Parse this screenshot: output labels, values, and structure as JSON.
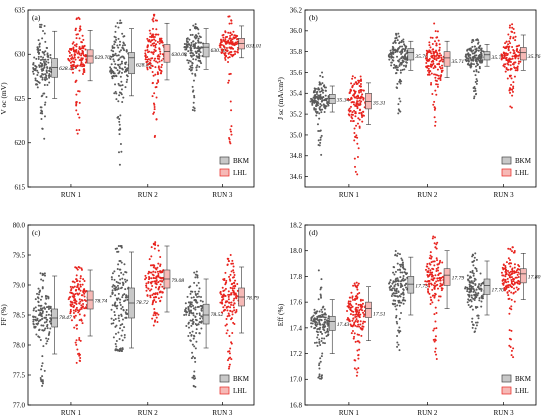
{
  "colors": {
    "BKM_points": "#5a5a5a",
    "BKM_box": "#c8c8c8",
    "LHL_points": "#e8231e",
    "LHL_box": "#f6b9b6",
    "axis": "#000000"
  },
  "legend": {
    "series": [
      "BKM",
      "LHL"
    ]
  },
  "chart_data": [
    {
      "panel_label": "(a)",
      "type": "box",
      "ylabel": "V oc (mV)",
      "categories": [
        "RUN 1",
        "RUN 2",
        "RUN 3"
      ],
      "ylim": [
        615,
        635
      ],
      "yticks": [
        615,
        620,
        625,
        630,
        635
      ],
      "yticklabels": [
        "615",
        "620",
        "625",
        "630",
        "635"
      ],
      "series": [
        {
          "name": "BKM",
          "means": [
            628.46,
            628.85,
            630.5
          ],
          "mean_labels": [
            "628.46",
            "628.85",
            "630.50"
          ],
          "q1": [
            627.4,
            627.8,
            629.7
          ],
          "median": [
            628.5,
            629.6,
            630.8
          ],
          "q3": [
            629.5,
            630.2,
            631.2
          ],
          "whisker_low": [
            625.0,
            625.3,
            628.3
          ],
          "whisker_high": [
            632.6,
            632.9,
            632.9
          ],
          "cloud_min": [
            619.5,
            617.3,
            623.5
          ],
          "cloud_max": [
            633.7,
            634.0,
            633.4
          ]
        },
        {
          "name": "LHL",
          "means": [
            629.7,
            630.03,
            631.01
          ],
          "mean_labels": [
            "629.70",
            "630.03",
            "631.01"
          ],
          "q1": [
            629.0,
            629.1,
            630.6
          ],
          "median": [
            629.8,
            630.3,
            631.2
          ],
          "q3": [
            630.5,
            631.1,
            631.8
          ],
          "whisker_low": [
            627.0,
            627.1,
            629.6
          ],
          "whisker_high": [
            632.7,
            633.5,
            633.2
          ],
          "cloud_min": [
            621.0,
            620.0,
            619.2
          ],
          "cloud_max": [
            634.3,
            634.7,
            634.3
          ]
        }
      ]
    },
    {
      "panel_label": "(b)",
      "type": "box",
      "ylabel": "J sc (mA/cm²)",
      "categories": [
        "RUN 1",
        "RUN 2",
        "RUN 3"
      ],
      "ylim": [
        34.5,
        36.2
      ],
      "yticks": [
        34.6,
        34.8,
        35.0,
        35.2,
        35.4,
        35.6,
        35.8,
        36.0,
        36.2
      ],
      "yticklabels": [
        "34.6",
        "34.8",
        "35.0",
        "35.2",
        "35.4",
        "35.6",
        "35.8",
        "36.0",
        "36.2"
      ],
      "series": [
        {
          "name": "BKM",
          "means": [
            35.34,
            35.76,
            35.75
          ],
          "mean_labels": [
            "35.34",
            "35.76",
            "35.75"
          ],
          "q1": [
            35.3,
            35.72,
            35.72
          ],
          "median": [
            35.35,
            35.79,
            35.77
          ],
          "q3": [
            35.39,
            35.83,
            35.8
          ],
          "whisker_low": [
            35.22,
            35.62,
            35.66
          ],
          "whisker_high": [
            35.47,
            35.9,
            35.87
          ],
          "cloud_min": [
            34.78,
            35.2,
            35.35
          ],
          "cloud_max": [
            35.62,
            35.98,
            35.92
          ]
        },
        {
          "name": "LHL",
          "means": [
            35.31,
            35.71,
            35.76
          ],
          "mean_labels": [
            "35.31",
            "35.71",
            "35.76"
          ],
          "q1": [
            35.25,
            35.66,
            35.72
          ],
          "median": [
            35.32,
            35.74,
            35.79
          ],
          "q3": [
            35.4,
            35.8,
            35.84
          ],
          "whisker_low": [
            35.1,
            35.55,
            35.62
          ],
          "whisker_high": [
            35.5,
            35.9,
            35.96
          ],
          "cloud_min": [
            34.62,
            35.08,
            35.18
          ],
          "cloud_max": [
            35.57,
            36.08,
            36.08
          ]
        }
      ]
    },
    {
      "panel_label": "(c)",
      "type": "box",
      "ylabel": "FF (%)",
      "categories": [
        "RUN 1",
        "RUN 2",
        "RUN 3"
      ],
      "ylim": [
        77.0,
        80.0
      ],
      "yticks": [
        77.0,
        77.5,
        78.0,
        78.5,
        79.0,
        79.5,
        80.0
      ],
      "yticklabels": [
        "77.0",
        "77.5",
        "78.0",
        "78.5",
        "79.0",
        "79.5",
        "80.0"
      ],
      "series": [
        {
          "name": "BKM",
          "means": [
            78.47,
            78.72,
            78.52
          ],
          "mean_labels": [
            "78.47",
            "78.72",
            "78.52"
          ],
          "q1": [
            78.3,
            78.45,
            78.35
          ],
          "median": [
            78.45,
            78.7,
            78.5
          ],
          "q3": [
            78.6,
            78.95,
            78.68
          ],
          "whisker_low": [
            77.85,
            77.95,
            77.95
          ],
          "whisker_high": [
            79.15,
            79.55,
            79.1
          ],
          "cloud_min": [
            77.2,
            77.9,
            77.3
          ],
          "cloud_max": [
            79.2,
            79.65,
            79.25
          ]
        },
        {
          "name": "LHL",
          "means": [
            78.74,
            79.08,
            78.79
          ],
          "mean_labels": [
            "78.74",
            "79.08",
            "78.79"
          ],
          "q1": [
            78.6,
            78.95,
            78.65
          ],
          "median": [
            78.75,
            79.1,
            78.8
          ],
          "q3": [
            78.9,
            79.25,
            78.95
          ],
          "whisker_low": [
            78.15,
            78.55,
            78.2
          ],
          "whisker_high": [
            79.25,
            79.65,
            79.3
          ],
          "cloud_min": [
            77.65,
            78.3,
            77.55
          ],
          "cloud_max": [
            79.3,
            79.72,
            79.5
          ]
        }
      ]
    },
    {
      "panel_label": "(d)",
      "type": "box",
      "ylabel": "Eff (%)",
      "categories": [
        "RUN 1",
        "RUN 2",
        "RUN 3"
      ],
      "ylim": [
        16.8,
        18.2
      ],
      "yticks": [
        16.8,
        17.0,
        17.2,
        17.4,
        17.6,
        17.8,
        18.0,
        18.2
      ],
      "yticklabels": [
        "16.8",
        "17.0",
        "17.2",
        "17.4",
        "17.6",
        "17.8",
        "18.0",
        "18.2"
      ],
      "series": [
        {
          "name": "BKM",
          "means": [
            17.43,
            17.73,
            17.7
          ],
          "mean_labels": [
            "17.43",
            "17.73",
            "17.70"
          ],
          "q1": [
            17.38,
            17.67,
            17.66
          ],
          "median": [
            17.45,
            17.74,
            17.73
          ],
          "q3": [
            17.49,
            17.8,
            17.78
          ],
          "whisker_low": [
            17.2,
            17.5,
            17.5
          ],
          "whisker_high": [
            17.62,
            17.95,
            17.92
          ],
          "cloud_min": [
            17.0,
            17.22,
            17.35
          ],
          "cloud_max": [
            17.85,
            18.0,
            17.98
          ]
        },
        {
          "name": "LHL",
          "means": [
            17.51,
            17.79,
            17.8
          ],
          "mean_labels": [
            "17.51",
            "17.79",
            "17.80"
          ],
          "q1": [
            17.48,
            17.73,
            17.75
          ],
          "median": [
            17.55,
            17.81,
            17.82
          ],
          "q3": [
            17.6,
            17.86,
            17.86
          ],
          "whisker_low": [
            17.3,
            17.55,
            17.62
          ],
          "whisker_high": [
            17.72,
            18.0,
            17.98
          ],
          "cloud_min": [
            16.95,
            17.15,
            17.15
          ],
          "cloud_max": [
            17.76,
            18.12,
            18.05
          ]
        }
      ]
    }
  ]
}
